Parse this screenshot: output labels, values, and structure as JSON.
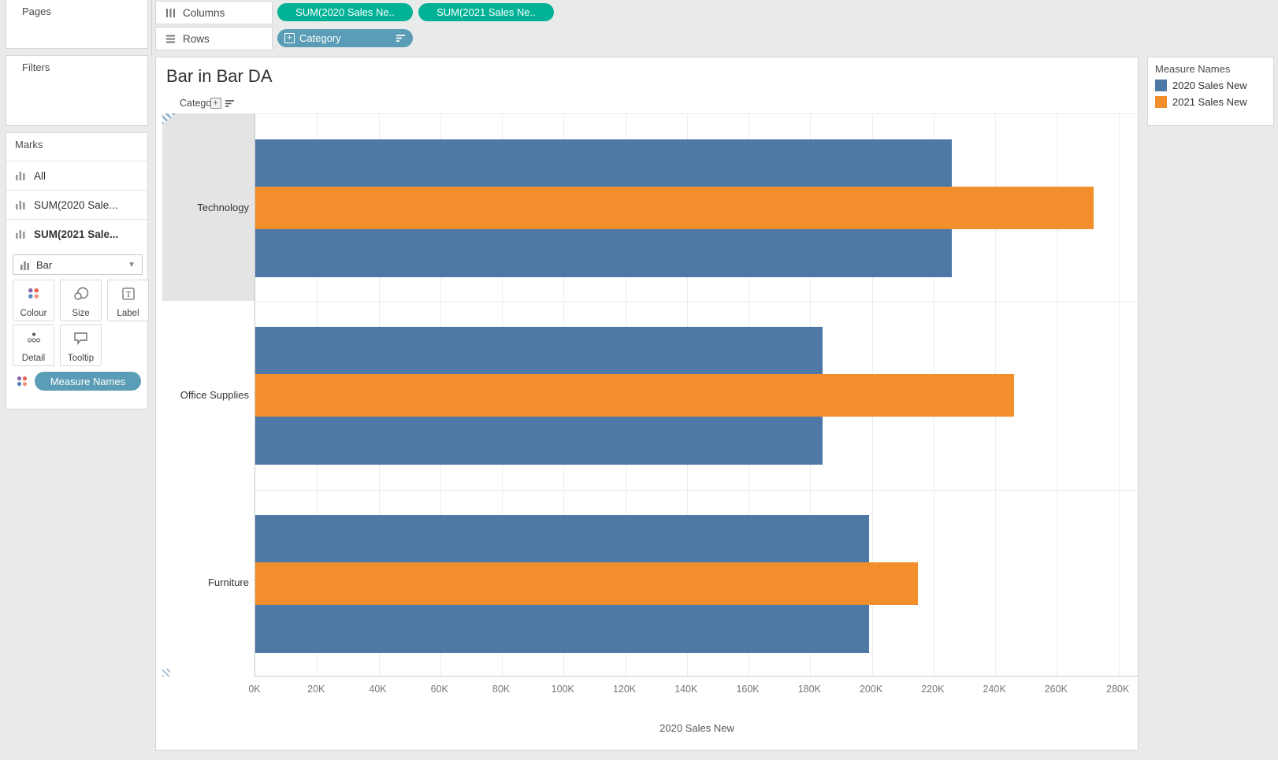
{
  "colors": {
    "bar_2020": "#4e79a7",
    "bar_2021": "#f28e2b",
    "pill_green": "#00b295",
    "pill_teal": "#5b9db6"
  },
  "left_panel": {
    "pages_label": "Pages",
    "filters_label": "Filters",
    "marks": {
      "title": "Marks",
      "items": [
        {
          "label": "All",
          "bold": false
        },
        {
          "label": "SUM(2020 Sale...",
          "bold": false
        },
        {
          "label": "SUM(2021 Sale...",
          "bold": true
        }
      ],
      "mark_type": "Bar",
      "buttons": [
        {
          "label": "Colour",
          "icon": "color-dots-icon"
        },
        {
          "label": "Size",
          "icon": "size-icon"
        },
        {
          "label": "Label",
          "icon": "label-icon"
        },
        {
          "label": "Detail",
          "icon": "detail-icon"
        },
        {
          "label": "Tooltip",
          "icon": "tooltip-icon"
        }
      ],
      "color_pill": "Measure Names"
    }
  },
  "shelves": {
    "columns": {
      "label": "Columns",
      "pills": [
        "SUM(2020 Sales Ne..",
        "SUM(2021 Sales Ne.."
      ]
    },
    "rows": {
      "label": "Rows",
      "pills": [
        "Category"
      ]
    }
  },
  "sheet": {
    "title": "Bar in Bar DA",
    "column_field_label": "Category"
  },
  "chart_data": {
    "type": "bar",
    "style": "bar-in-bar",
    "orientation": "horizontal",
    "categories": [
      "Technology",
      "Office Supplies",
      "Furniture"
    ],
    "series": [
      {
        "name": "2020 Sales New",
        "color": "#4e79a7",
        "values": [
          226000,
          184000,
          199000
        ]
      },
      {
        "name": "2021 Sales New",
        "color": "#f28e2b",
        "values": [
          272000,
          246000,
          215000
        ]
      }
    ],
    "xlabel": "2020 Sales New",
    "xlim": [
      0,
      287000
    ],
    "tick_interval": 20000,
    "x_tick_labels": [
      "0K",
      "20K",
      "40K",
      "60K",
      "80K",
      "100K",
      "120K",
      "140K",
      "160K",
      "180K",
      "200K",
      "220K",
      "240K",
      "260K",
      "280K"
    ],
    "grid": true,
    "legend_title": "Measure Names",
    "selected_category": "Technology"
  },
  "legend": {
    "title": "Measure Names",
    "items": [
      {
        "label": "2020 Sales New",
        "color": "#4e79a7"
      },
      {
        "label": "2021 Sales New",
        "color": "#f28e2b"
      }
    ]
  }
}
